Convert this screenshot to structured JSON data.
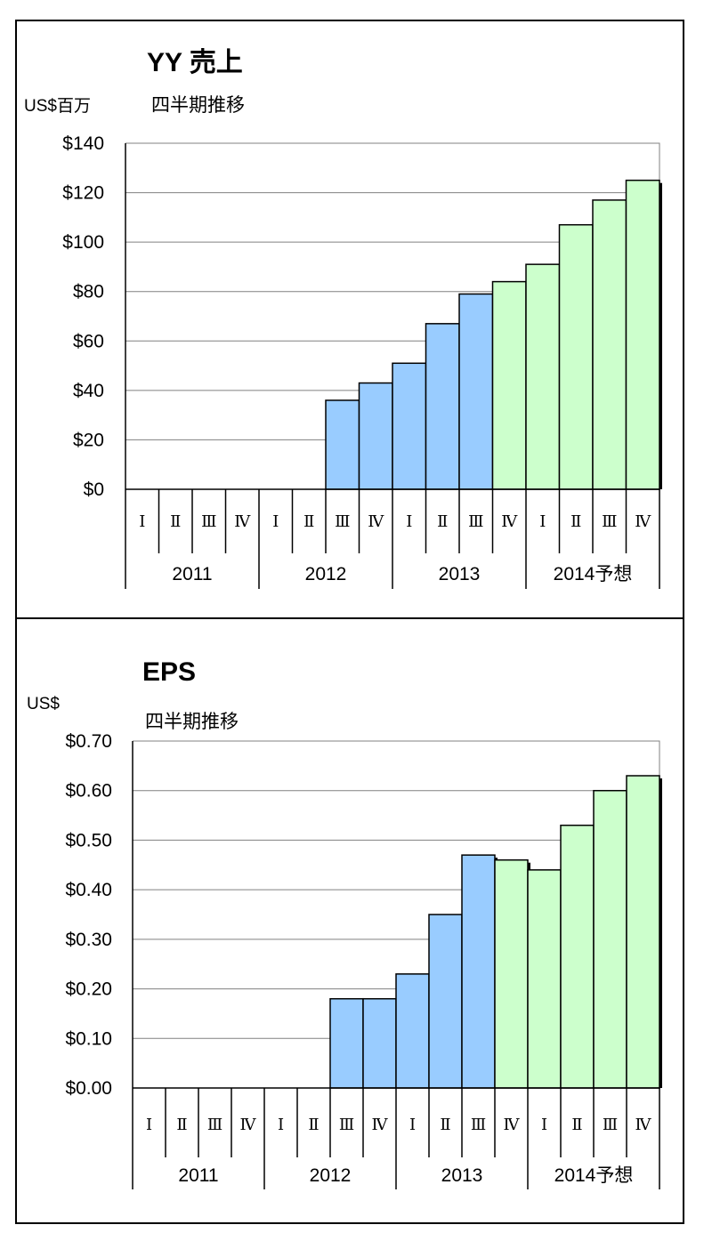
{
  "chart_data": [
    {
      "type": "bar",
      "title": "YY 売上",
      "unit_label": "US$百万",
      "subtitle": "四半期推移",
      "years": [
        "2011",
        "2012",
        "2013",
        "2014予想"
      ],
      "categories": [
        "Ⅰ",
        "Ⅱ",
        "Ⅲ",
        "Ⅳ",
        "Ⅰ",
        "Ⅱ",
        "Ⅲ",
        "Ⅳ",
        "Ⅰ",
        "Ⅱ",
        "Ⅲ",
        "Ⅳ",
        "Ⅰ",
        "Ⅱ",
        "Ⅲ",
        "Ⅳ"
      ],
      "series": [
        {
          "color": "#99ccff",
          "values": [
            null,
            null,
            null,
            null,
            null,
            null,
            36,
            43,
            51,
            67,
            79,
            null,
            null,
            null,
            null,
            null
          ]
        },
        {
          "color": "#ccffcc",
          "values": [
            null,
            null,
            null,
            null,
            null,
            null,
            null,
            null,
            null,
            null,
            null,
            84,
            91,
            107,
            117,
            125
          ]
        }
      ],
      "ylim": [
        0,
        140
      ],
      "yticks": [
        "$0",
        "$20",
        "$40",
        "$60",
        "$80",
        "$100",
        "$120",
        "$140"
      ],
      "grid": true
    },
    {
      "type": "bar",
      "title": "EPS",
      "unit_label": "US$",
      "subtitle": "四半期推移",
      "years": [
        "2011",
        "2012",
        "2013",
        "2014予想"
      ],
      "categories": [
        "Ⅰ",
        "Ⅱ",
        "Ⅲ",
        "Ⅳ",
        "Ⅰ",
        "Ⅱ",
        "Ⅲ",
        "Ⅳ",
        "Ⅰ",
        "Ⅱ",
        "Ⅲ",
        "Ⅳ",
        "Ⅰ",
        "Ⅱ",
        "Ⅲ",
        "Ⅳ"
      ],
      "series": [
        {
          "color": "#99ccff",
          "values": [
            null,
            null,
            null,
            null,
            null,
            null,
            0.18,
            0.18,
            0.23,
            0.35,
            0.47,
            null,
            null,
            null,
            null,
            null
          ]
        },
        {
          "color": "#ccffcc",
          "values": [
            null,
            null,
            null,
            null,
            null,
            null,
            null,
            null,
            null,
            null,
            null,
            0.46,
            0.44,
            0.53,
            0.6,
            0.63
          ]
        }
      ],
      "ylim": [
        0,
        0.7
      ],
      "yticks": [
        "$0.00",
        "$0.10",
        "$0.20",
        "$0.30",
        "$0.40",
        "$0.50",
        "$0.60",
        "$0.70"
      ],
      "grid": true
    }
  ]
}
